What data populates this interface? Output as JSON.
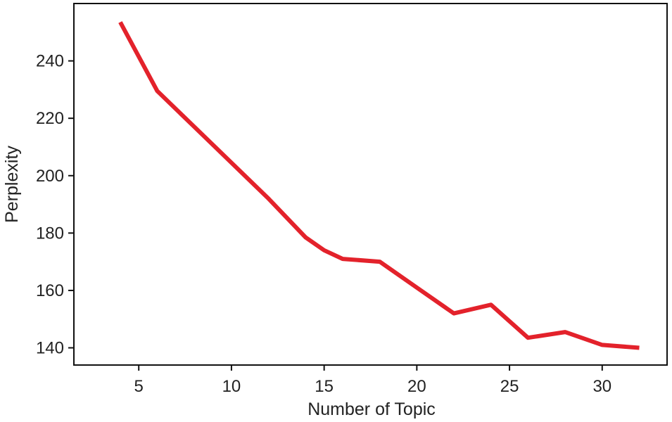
{
  "chart_data": {
    "type": "line",
    "title": "",
    "xlabel": "Number of Topic",
    "ylabel": "Perplexity",
    "xlim": [
      1.5,
      33.5
    ],
    "ylim": [
      134,
      260
    ],
    "xticks": [
      5,
      10,
      15,
      20,
      25,
      30
    ],
    "yticks": [
      140,
      160,
      180,
      200,
      220,
      240
    ],
    "grid": false,
    "legend": "none",
    "series": [
      {
        "color": "#e3222b",
        "x": [
          4,
          6,
          8,
          10,
          12,
          14,
          15,
          16,
          18,
          20,
          22,
          24,
          26,
          28,
          30,
          32
        ],
        "y": [
          253.5,
          229.5,
          217,
          204.5,
          192,
          178.5,
          174,
          171,
          170,
          161,
          152,
          155,
          143.5,
          145.5,
          141,
          140
        ]
      }
    ]
  }
}
